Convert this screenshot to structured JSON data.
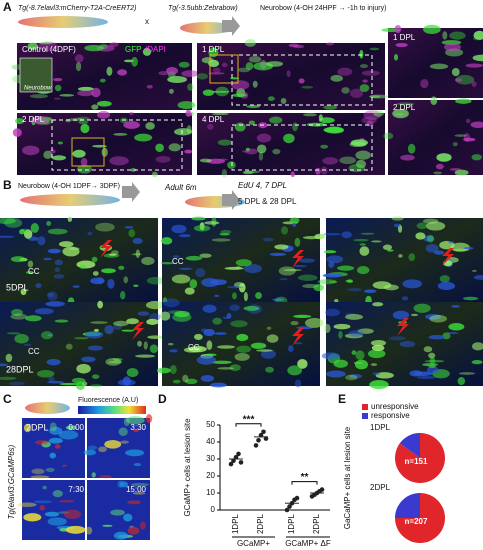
{
  "panel_a": {
    "letter": "A",
    "line1": "Tg(-8.7elavl3:mCherry-T2A-CreERT2)",
    "cross": "x",
    "line2": "Tg(-3.5ubb:Zebrabow)",
    "treatment": "Neurobow (4-OH 24HPF → -1h to injury)",
    "control": "Control (4DPF)",
    "stain_gfp": "GFP",
    "stain_dapi": "/DAPI",
    "inset": "Neurobow",
    "img_1dpl": "1 DPL",
    "img_2dpl": "2 DPL",
    "img_4dpl": "4 DPL",
    "zoom_1dpl": "1 DPL",
    "zoom_2dpl": "2 DPL"
  },
  "panel_b": {
    "letter": "B",
    "treatment": "Neurobow (4-OH 1DPF→ 3DPF)",
    "adult": "Adult 6m",
    "edu": "EdU 4, 7 DPL",
    "timepoints": "5 DPL & 28 DPL",
    "cc": "CC",
    "row1": "5DPL",
    "row2": "28DPL"
  },
  "panel_c": {
    "letter": "C",
    "colorbar": "Fluorescence (A.U)",
    "line": "Tg(elavl3:GCaMP6s)",
    "stage": "2DPL",
    "times": [
      "0:00",
      "3:30",
      "7:30",
      "15:00"
    ]
  },
  "panel_d_letter": "D",
  "panel_e_letter": "E",
  "chart_data": [
    {
      "type": "dot",
      "ylabel": "GCaMP+ cells at lesion site",
      "categories": [
        "1DPL",
        "2DPL",
        "1DPL",
        "2DPL"
      ],
      "group_labels": [
        "GCaMP+",
        "GCaMP+ ΔF"
      ],
      "values": [
        30,
        43,
        4,
        10
      ],
      "points": [
        [
          27,
          29,
          31,
          33,
          28
        ],
        [
          38,
          41,
          44,
          46,
          42
        ],
        [
          0,
          2,
          4,
          6,
          7
        ],
        [
          8,
          9,
          10,
          11,
          12
        ]
      ],
      "color": "#222222",
      "ylim": [
        0,
        50
      ],
      "yticks": [
        0,
        10,
        20,
        30,
        40,
        50
      ],
      "annotations": [
        "***",
        "**"
      ]
    },
    {
      "type": "pie",
      "ylabel": "GaCaMP+ cells at lesion site",
      "title": "1DPL",
      "categories": [
        "unresponsive",
        "responsive"
      ],
      "colors": [
        "#e0262a",
        "#3a3acf"
      ],
      "values": [
        85,
        15
      ],
      "note": "n=151"
    },
    {
      "type": "pie",
      "title": "2DPL",
      "categories": [
        "unresponsive",
        "responsive"
      ],
      "colors": [
        "#e0262a",
        "#3a3acf"
      ],
      "values": [
        75,
        25
      ],
      "note": "n=207"
    }
  ]
}
